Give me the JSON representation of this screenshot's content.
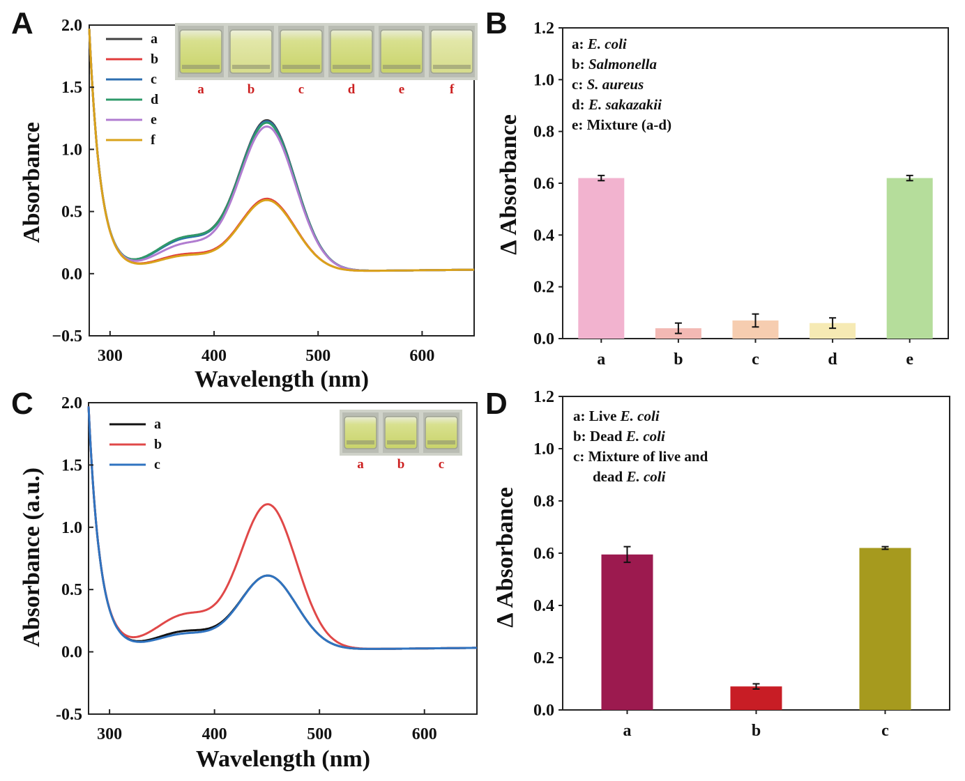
{
  "panels": {
    "A": "A",
    "B": "B",
    "C": "C",
    "D": "D"
  },
  "chart_data": [
    {
      "id": "A",
      "type": "line",
      "xlabel": "Wavelength (nm)",
      "ylabel": "Absorbance",
      "xlim": [
        280,
        650
      ],
      "ylim": [
        -0.5,
        2.0
      ],
      "xticks": [
        300,
        400,
        500,
        600
      ],
      "yticks": [
        -0.5,
        0.0,
        0.5,
        1.0,
        1.5,
        2.0
      ],
      "ytick_labels": [
        "−0.5",
        "0.0",
        "0.5",
        "1.0",
        "1.5",
        "2.0"
      ],
      "photo_labels": [
        "a",
        "b",
        "c",
        "d",
        "e",
        "f"
      ],
      "series": [
        {
          "name": "a",
          "color": "#404040",
          "peak": 1.23,
          "shoulder": 0.26
        },
        {
          "name": "b",
          "color": "#e03c3c",
          "peak": 0.6,
          "shoulder": 0.13
        },
        {
          "name": "c",
          "color": "#2e6fb0",
          "peak": 1.22,
          "shoulder": 0.25
        },
        {
          "name": "d",
          "color": "#2e9a6a",
          "peak": 1.21,
          "shoulder": 0.26
        },
        {
          "name": "e",
          "color": "#b07cd0",
          "peak": 1.18,
          "shoulder": 0.21
        },
        {
          "name": "f",
          "color": "#d9a21b",
          "peak": 0.59,
          "shoulder": 0.12
        }
      ]
    },
    {
      "id": "B",
      "type": "bar",
      "ylabel": "Δ Absorbance",
      "ylim": [
        0.0,
        1.2
      ],
      "yticks": [
        0.0,
        0.2,
        0.4,
        0.6,
        0.8,
        1.0,
        1.2
      ],
      "categories": [
        "a",
        "b",
        "c",
        "d",
        "e"
      ],
      "values": [
        0.62,
        0.04,
        0.07,
        0.06,
        0.62
      ],
      "errors": [
        0.01,
        0.02,
        0.025,
        0.02,
        0.01
      ],
      "colors": [
        "#f2b3cf",
        "#f3b9b4",
        "#f6cdb0",
        "#f6eab4",
        "#b5dd9b"
      ],
      "notes": [
        {
          "prefix": "a: ",
          "name": "E. coli"
        },
        {
          "prefix": "b: ",
          "name": "Salmonella"
        },
        {
          "prefix": "c: ",
          "name": "S. aureus"
        },
        {
          "prefix": "d: ",
          "name": "E. sakazakii"
        },
        {
          "prefix": "e: Mixture (a-d)",
          "name": ""
        }
      ]
    },
    {
      "id": "C",
      "type": "line",
      "xlabel": "Wavelength (nm)",
      "ylabel": "Absorbance (a.u.)",
      "xlim": [
        280,
        650
      ],
      "ylim": [
        -0.5,
        2.0
      ],
      "xticks": [
        300,
        400,
        500,
        600
      ],
      "yticks": [
        -0.5,
        0.0,
        0.5,
        1.0,
        1.5,
        2.0
      ],
      "ytick_labels": [
        "-0.5",
        "0.0",
        "0.5",
        "1.0",
        "1.5",
        "2.0"
      ],
      "photo_labels": [
        "a",
        "b",
        "c"
      ],
      "series": [
        {
          "name": "a",
          "color": "#111111",
          "peak": 0.61,
          "shoulder": 0.14
        },
        {
          "name": "b",
          "color": "#e04848",
          "peak": 1.18,
          "shoulder": 0.27
        },
        {
          "name": "c",
          "color": "#2f73c0",
          "peak": 0.61,
          "shoulder": 0.12
        }
      ]
    },
    {
      "id": "D",
      "type": "bar",
      "ylabel": "Δ Absorbance",
      "ylim": [
        0.0,
        1.2
      ],
      "yticks": [
        0.0,
        0.2,
        0.4,
        0.6,
        0.8,
        1.0,
        1.2
      ],
      "categories": [
        "a",
        "b",
        "c"
      ],
      "values": [
        0.595,
        0.09,
        0.62
      ],
      "errors": [
        0.03,
        0.01,
        0.005
      ],
      "colors": [
        "#9c1a4f",
        "#c81d25",
        "#a69a1e"
      ],
      "notes": [
        {
          "prefix": "a: Live ",
          "name": "E. coli"
        },
        {
          "prefix": "b: Dead ",
          "name": "E. coli"
        },
        {
          "prefix": "c: Mixture of live and",
          "name": ""
        },
        {
          "prefix": "dead ",
          "name": "E. coli"
        }
      ]
    }
  ]
}
